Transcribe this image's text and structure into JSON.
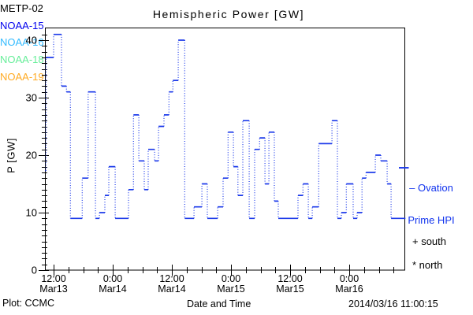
{
  "title": "Hemispheric Power [GW]",
  "y_axis": {
    "label": "P [GW]",
    "ticks": [
      0,
      10,
      20,
      30,
      40
    ]
  },
  "x_axis": {
    "label": "Date and Time"
  },
  "legend": [
    {
      "label": "METP-02",
      "color": "#000000"
    },
    {
      "label": "NOAA-15",
      "color": "#0000EE"
    },
    {
      "label": "NOAA-16",
      "color": "#33BBFF"
    },
    {
      "label": "NOAA-18",
      "color": "#66EE99"
    },
    {
      "label": "NOAA-19",
      "color": "#FFAA22"
    }
  ],
  "annotations": {
    "ovation_line1": "– Ovation",
    "ovation_line2": "Prime HPI",
    "ovation_color": "#1133EE",
    "south_marker": "+ south",
    "north_marker": "* north"
  },
  "footer": {
    "credit": "Plot: CCMC",
    "timestamp": "2014/03/16 11:00:15"
  },
  "chart_data": {
    "type": "line",
    "subtype": "steps-with-dotted-risers",
    "title": "Hemispheric Power [GW]",
    "xlabel": "Date and Time",
    "ylabel": "P [GW]",
    "ylim": [
      0,
      42
    ],
    "yticks": [
      0,
      10,
      20,
      30,
      40
    ],
    "y_minor_step_gw": 1,
    "x_unit": "hours since 2014-03-13 00:00",
    "xlim_hours": [
      10.3,
      83.4
    ],
    "x_end_hours": 83.4,
    "x_minor_step_hours": 3,
    "grid": false,
    "legend_position": "right-outside",
    "xticks": [
      {
        "hour": 12,
        "time": "12:00",
        "date": "Mar13"
      },
      {
        "hour": 24,
        "time": "0:00",
        "date": "Mar14"
      },
      {
        "hour": 36,
        "time": "12:00",
        "date": "Mar14"
      },
      {
        "hour": 48,
        "time": "0:00",
        "date": "Mar15"
      },
      {
        "hour": 60,
        "time": "12:00",
        "date": "Mar15"
      },
      {
        "hour": 72,
        "time": "0:00",
        "date": "Mar16"
      }
    ],
    "series": [
      {
        "name": "NOAA-15 Hemispheric Power Index",
        "color": "#1C3AEA",
        "style": "step",
        "points_hour_gw": [
          [
            10.3,
            17.3
          ],
          [
            10.45,
            37
          ],
          [
            12.0,
            41
          ],
          [
            13.6,
            32
          ],
          [
            14.6,
            31
          ],
          [
            15.4,
            9
          ],
          [
            17.8,
            16
          ],
          [
            19.0,
            31
          ],
          [
            20.5,
            9
          ],
          [
            21.3,
            10
          ],
          [
            22.4,
            13
          ],
          [
            23.2,
            18
          ],
          [
            24.5,
            9
          ],
          [
            27.2,
            14
          ],
          [
            28.2,
            27
          ],
          [
            29.3,
            19
          ],
          [
            30.4,
            14
          ],
          [
            31.2,
            21
          ],
          [
            32.5,
            19
          ],
          [
            33.3,
            25
          ],
          [
            34.4,
            27
          ],
          [
            35.4,
            31
          ],
          [
            36.2,
            33
          ],
          [
            37.3,
            40
          ],
          [
            38.6,
            9
          ],
          [
            40.5,
            11
          ],
          [
            42.1,
            15
          ],
          [
            43.2,
            9
          ],
          [
            45.3,
            11
          ],
          [
            46.4,
            16
          ],
          [
            47.4,
            24
          ],
          [
            48.5,
            18
          ],
          [
            49.4,
            13
          ],
          [
            50.4,
            26
          ],
          [
            51.7,
            9
          ],
          [
            52.8,
            21
          ],
          [
            53.8,
            23
          ],
          [
            54.9,
            15
          ],
          [
            55.7,
            24
          ],
          [
            56.8,
            12
          ],
          [
            57.6,
            9
          ],
          [
            61.6,
            13
          ],
          [
            62.6,
            15
          ],
          [
            63.7,
            9
          ],
          [
            64.5,
            11
          ],
          [
            65.8,
            22
          ],
          [
            68.5,
            26
          ],
          [
            69.6,
            9
          ],
          [
            70.4,
            10
          ],
          [
            71.4,
            15
          ],
          [
            72.8,
            9
          ],
          [
            73.6,
            10
          ],
          [
            74.6,
            16
          ],
          [
            75.4,
            17
          ],
          [
            77.3,
            20
          ],
          [
            78.4,
            19
          ],
          [
            79.7,
            15
          ],
          [
            80.5,
            9
          ]
        ]
      }
    ],
    "ovation_prime_hpi_marker": {
      "value_gw": 17.8,
      "color": "#1C3AEA"
    }
  }
}
